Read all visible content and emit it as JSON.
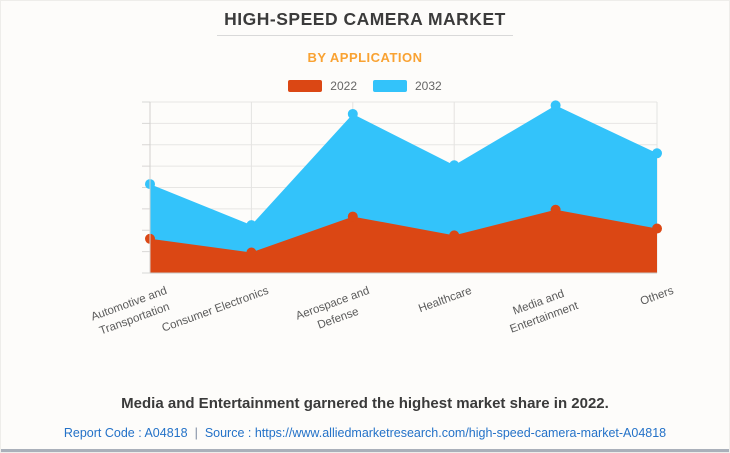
{
  "title": "HIGH-SPEED CAMERA MARKET",
  "subtitle": "BY APPLICATION",
  "legend": {
    "items": [
      {
        "label": "2022",
        "color": "#DB4714"
      },
      {
        "label": "2032",
        "color": "#33C3FA"
      }
    ]
  },
  "chart_data": {
    "type": "area",
    "title": "HIGH-SPEED CAMERA MARKET",
    "subtitle": "BY APPLICATION",
    "categories": [
      "Automotive and Transportation",
      "Consumer Electronics",
      "Aerospace and Defense",
      "Healthcare",
      "Media and Entertainment",
      "Others"
    ],
    "category_label_lines": [
      [
        "Automotive and",
        "Transportation"
      ],
      [
        "Consumer Electronics"
      ],
      [
        "Aerospace and",
        "Defense"
      ],
      [
        "Healthcare"
      ],
      [
        "Media and",
        "Entertainment"
      ],
      [
        "Others"
      ]
    ],
    "series": [
      {
        "name": "2022",
        "color": "#DB4714",
        "values": [
          20,
          12,
          33,
          22,
          37,
          26
        ]
      },
      {
        "name": "2032",
        "color": "#33C3FA",
        "values": [
          52,
          28,
          93,
          63,
          98,
          70
        ]
      }
    ],
    "ylim": [
      0,
      100
    ],
    "y_axis_labels_shown": false,
    "grid": true,
    "legend_position": "top",
    "markers": true
  },
  "caption": "Media and Entertainment garnered the highest market share in 2022.",
  "footer": {
    "report_code": "Report Code : A04818",
    "separator": "|",
    "source": "Source : https://www.alliedmarketresearch.com/high-speed-camera-market-A04818"
  },
  "colors": {
    "accent_orange": "#F9A232",
    "series_2022": "#DB4714",
    "series_2032": "#33C3FA",
    "link_blue": "#2472C8",
    "title_text": "#3B3B3B",
    "background": "#FDFCFA"
  }
}
